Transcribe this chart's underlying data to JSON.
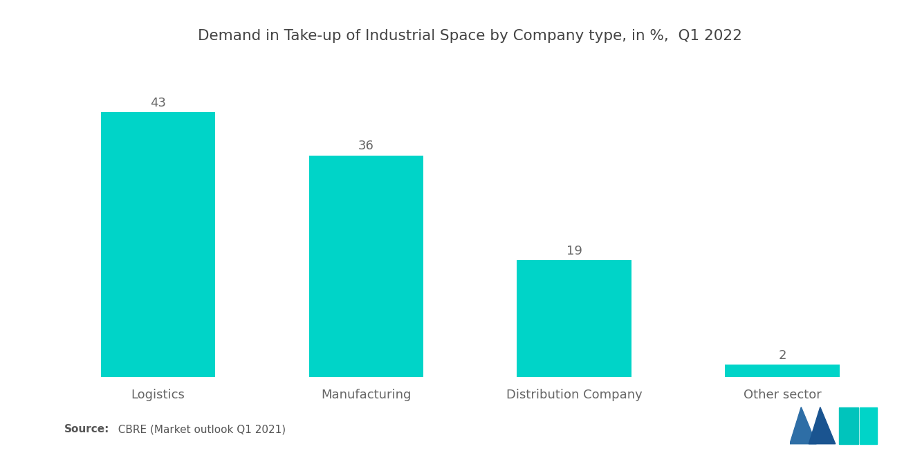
{
  "title": "Demand in Take-up of Industrial Space by Company type, in %,  Q1 2022",
  "categories": [
    "Logistics",
    "Manufacturing",
    "Distribution Company",
    "Other sector"
  ],
  "values": [
    43,
    36,
    19,
    2
  ],
  "bar_color": "#00D4C8",
  "background_color": "#ffffff",
  "title_fontsize": 15.5,
  "label_fontsize": 13,
  "value_fontsize": 13,
  "source_bold": "Source:",
  "source_normal": "  CBRE (Market outlook Q1 2021)",
  "ylim": [
    0,
    50
  ],
  "bar_width": 0.55,
  "logo_colors": {
    "left_tri": "#2E6EA6",
    "mid_tri": "#1A5490",
    "right_rect": "#00C4BC",
    "right_tri": "#00D4C8"
  }
}
